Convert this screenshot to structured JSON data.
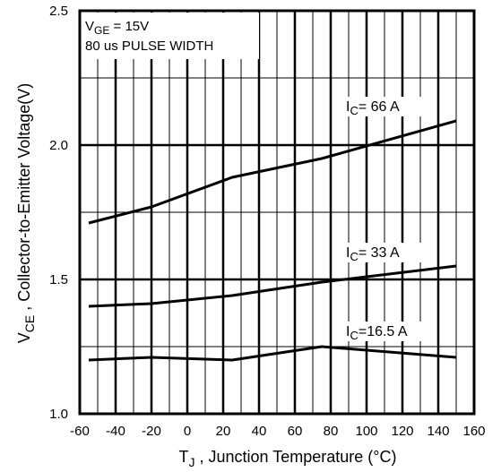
{
  "chart_data": {
    "type": "line",
    "xlabel_main": "T",
    "xlabel_sub": "J",
    "xlabel_rest": " , Junction Temperature (°C)",
    "ylabel_main": "V",
    "ylabel_sub": "CE",
    "ylabel_rest": " , Collector-to-Emitter Voltage(V)",
    "xlim": [
      -60,
      160
    ],
    "ylim": [
      1.0,
      2.5
    ],
    "xticks": [
      -60,
      -40,
      -20,
      0,
      20,
      40,
      60,
      80,
      100,
      120,
      140,
      160
    ],
    "yticks": [
      1.0,
      1.5,
      2.0,
      2.5
    ],
    "ytick_labels": [
      "1.0",
      "1.5",
      "2.0",
      "2.5"
    ],
    "grid": true,
    "annotation": {
      "line1_main": "V",
      "line1_sub": "GE",
      "line1_rest": " = 15V",
      "line2": "80 us PULSE WIDTH"
    },
    "series": [
      {
        "label_main": "I",
        "label_sub": "C",
        "label_rest": "=  66 A",
        "x": [
          -55,
          -20,
          25,
          75,
          150
        ],
        "y": [
          1.71,
          1.77,
          1.88,
          1.95,
          2.09
        ]
      },
      {
        "label_main": "I",
        "label_sub": "C",
        "label_rest": "=  33 A",
        "x": [
          -55,
          -20,
          25,
          75,
          150
        ],
        "y": [
          1.4,
          1.41,
          1.44,
          1.49,
          1.55
        ]
      },
      {
        "label_main": "I",
        "label_sub": "C",
        "label_rest": "=16.5 A",
        "x": [
          -55,
          -20,
          25,
          75,
          150
        ],
        "y": [
          1.2,
          1.21,
          1.2,
          1.25,
          1.21
        ]
      }
    ]
  }
}
